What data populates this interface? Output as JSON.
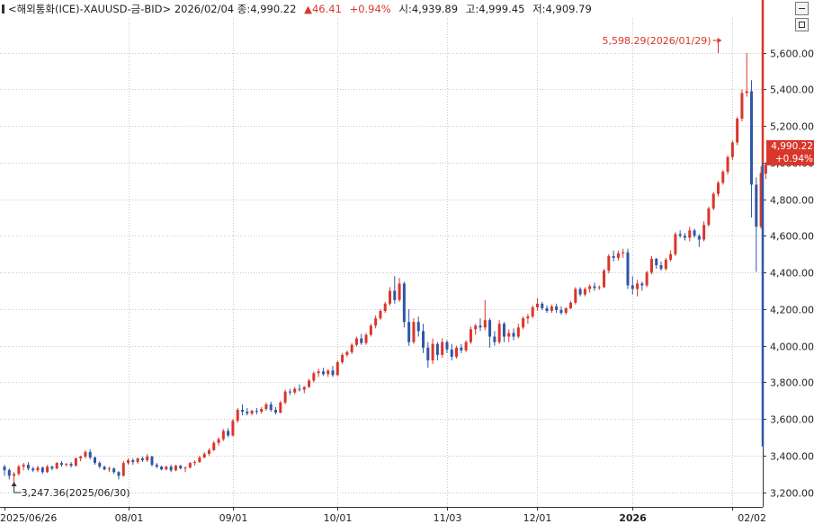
{
  "header": {
    "symbol": "<해외통화(ICE)-XAUUSD-금-BID>",
    "date": "2026/02/04",
    "close_label": "종:",
    "close": "4,990.22",
    "change_arrow": "▲",
    "change": "46.41",
    "change_pct": "+0.94%",
    "open_label": "시:",
    "open": "4,939.89",
    "high_label": "고:",
    "high": "4,999.45",
    "low_label": "저:",
    "low": "4,909.79"
  },
  "price_badge": {
    "price": "4,990.22",
    "change_pct": "+0.94%"
  },
  "colors": {
    "up": "#d9372b",
    "down": "#2f56a6",
    "grid": "#c8c8c8"
  },
  "chart_data": {
    "type": "candlestick",
    "y_ticks": [
      3200,
      3400,
      3600,
      3800,
      4000,
      4200,
      4400,
      4600,
      4800,
      5000,
      5200,
      5400,
      5600
    ],
    "y_tick_labels": [
      "3,200.00",
      "3,400.00",
      "3,600.00",
      "3,800.00",
      "4,000.00",
      "4,200.00",
      "4,400.00",
      "4,600.00",
      "4,800.00",
      "5,000.00",
      "5,200.00",
      "5,400.00",
      "5,600.00"
    ],
    "ylim": [
      3120,
      5790
    ],
    "x_tick_labels": [
      "2025/06/26",
      "08/01",
      "09/01",
      "10/01",
      "11/03",
      "12/01",
      "2026",
      "02/02"
    ],
    "x_tick_index": [
      0,
      26,
      48,
      70,
      93,
      112,
      132,
      153
    ],
    "x_tick_bold": [
      false,
      false,
      false,
      false,
      false,
      false,
      true,
      false
    ],
    "annotations": [
      {
        "text": "5,598.29(2026/01/29)",
        "index": 150,
        "value": 5598.29
      },
      {
        "text": "3,247.36(2025/06/30)",
        "index": 2,
        "value": 3247.36
      }
    ],
    "candles": [
      [
        3340,
        3350,
        3290,
        3320
      ],
      [
        3322,
        3330,
        3270,
        3290
      ],
      [
        3290,
        3310,
        3247,
        3300
      ],
      [
        3300,
        3350,
        3290,
        3340
      ],
      [
        3340,
        3360,
        3320,
        3350
      ],
      [
        3350,
        3365,
        3320,
        3330
      ],
      [
        3330,
        3340,
        3310,
        3320
      ],
      [
        3320,
        3345,
        3310,
        3335
      ],
      [
        3335,
        3340,
        3300,
        3310
      ],
      [
        3310,
        3350,
        3305,
        3340
      ],
      [
        3340,
        3345,
        3320,
        3330
      ],
      [
        3330,
        3365,
        3325,
        3360
      ],
      [
        3360,
        3370,
        3340,
        3350
      ],
      [
        3350,
        3360,
        3340,
        3355
      ],
      [
        3355,
        3365,
        3335,
        3345
      ],
      [
        3345,
        3390,
        3340,
        3385
      ],
      [
        3385,
        3400,
        3370,
        3395
      ],
      [
        3395,
        3430,
        3385,
        3420
      ],
      [
        3420,
        3435,
        3380,
        3390
      ],
      [
        3390,
        3395,
        3350,
        3360
      ],
      [
        3360,
        3370,
        3330,
        3340
      ],
      [
        3340,
        3345,
        3320,
        3325
      ],
      [
        3325,
        3340,
        3310,
        3330
      ],
      [
        3330,
        3335,
        3300,
        3310
      ],
      [
        3310,
        3315,
        3270,
        3290
      ],
      [
        3290,
        3370,
        3285,
        3360
      ],
      [
        3360,
        3385,
        3350,
        3375
      ],
      [
        3375,
        3385,
        3350,
        3365
      ],
      [
        3365,
        3390,
        3355,
        3385
      ],
      [
        3385,
        3395,
        3365,
        3375
      ],
      [
        3375,
        3410,
        3365,
        3395
      ],
      [
        3395,
        3400,
        3340,
        3350
      ],
      [
        3350,
        3360,
        3330,
        3340
      ],
      [
        3340,
        3345,
        3320,
        3325
      ],
      [
        3325,
        3345,
        3320,
        3340
      ],
      [
        3340,
        3350,
        3310,
        3320
      ],
      [
        3320,
        3350,
        3315,
        3345
      ],
      [
        3345,
        3350,
        3325,
        3330
      ],
      [
        3330,
        3340,
        3310,
        3335
      ],
      [
        3335,
        3365,
        3330,
        3360
      ],
      [
        3360,
        3375,
        3345,
        3365
      ],
      [
        3365,
        3400,
        3360,
        3390
      ],
      [
        3390,
        3420,
        3385,
        3410
      ],
      [
        3410,
        3440,
        3400,
        3430
      ],
      [
        3430,
        3480,
        3425,
        3470
      ],
      [
        3470,
        3500,
        3455,
        3490
      ],
      [
        3490,
        3545,
        3480,
        3535
      ],
      [
        3535,
        3550,
        3500,
        3510
      ],
      [
        3510,
        3600,
        3505,
        3590
      ],
      [
        3590,
        3660,
        3580,
        3650
      ],
      [
        3650,
        3680,
        3620,
        3640
      ],
      [
        3640,
        3660,
        3620,
        3630
      ],
      [
        3630,
        3650,
        3620,
        3645
      ],
      [
        3645,
        3660,
        3625,
        3640
      ],
      [
        3640,
        3665,
        3630,
        3655
      ],
      [
        3655,
        3690,
        3645,
        3680
      ],
      [
        3680,
        3695,
        3640,
        3650
      ],
      [
        3650,
        3665,
        3625,
        3635
      ],
      [
        3635,
        3700,
        3630,
        3690
      ],
      [
        3690,
        3760,
        3680,
        3750
      ],
      [
        3750,
        3765,
        3730,
        3745
      ],
      [
        3745,
        3775,
        3735,
        3765
      ],
      [
        3765,
        3790,
        3750,
        3760
      ],
      [
        3760,
        3780,
        3740,
        3775
      ],
      [
        3775,
        3820,
        3770,
        3810
      ],
      [
        3810,
        3860,
        3800,
        3850
      ],
      [
        3850,
        3875,
        3830,
        3860
      ],
      [
        3860,
        3880,
        3835,
        3845
      ],
      [
        3845,
        3870,
        3830,
        3865
      ],
      [
        3865,
        3890,
        3830,
        3840
      ],
      [
        3840,
        3920,
        3835,
        3910
      ],
      [
        3910,
        3960,
        3900,
        3950
      ],
      [
        3950,
        3975,
        3940,
        3965
      ],
      [
        3965,
        4015,
        3955,
        4005
      ],
      [
        4005,
        4050,
        3995,
        4040
      ],
      [
        4040,
        4065,
        4005,
        4015
      ],
      [
        4015,
        4070,
        4005,
        4060
      ],
      [
        4060,
        4120,
        4050,
        4110
      ],
      [
        4110,
        4165,
        4095,
        4150
      ],
      [
        4150,
        4200,
        4140,
        4190
      ],
      [
        4190,
        4240,
        4180,
        4230
      ],
      [
        4230,
        4320,
        4220,
        4300
      ],
      [
        4300,
        4380,
        4230,
        4250
      ],
      [
        4250,
        4370,
        4240,
        4340
      ],
      [
        4340,
        4350,
        4100,
        4130
      ],
      [
        4130,
        4200,
        4000,
        4020
      ],
      [
        4020,
        4150,
        4010,
        4130
      ],
      [
        4130,
        4160,
        4050,
        4080
      ],
      [
        4080,
        4120,
        3960,
        3990
      ],
      [
        3990,
        4020,
        3880,
        3920
      ],
      [
        3920,
        4040,
        3900,
        4010
      ],
      [
        4010,
        4020,
        3920,
        3950
      ],
      [
        3950,
        4040,
        3935,
        4020
      ],
      [
        4020,
        4030,
        3960,
        3980
      ],
      [
        3980,
        4010,
        3920,
        3940
      ],
      [
        3940,
        4000,
        3930,
        3990
      ],
      [
        3990,
        4010,
        3960,
        3975
      ],
      [
        3975,
        4030,
        3965,
        4020
      ],
      [
        4020,
        4105,
        4010,
        4090
      ],
      [
        4090,
        4120,
        4060,
        4110
      ],
      [
        4110,
        4150,
        4080,
        4100
      ],
      [
        4100,
        4250,
        4085,
        4140
      ],
      [
        4140,
        4150,
        3990,
        4050
      ],
      [
        4050,
        4080,
        4000,
        4020
      ],
      [
        4020,
        4140,
        4010,
        4120
      ],
      [
        4120,
        4130,
        4020,
        4050
      ],
      [
        4050,
        4090,
        4020,
        4070
      ],
      [
        4070,
        4095,
        4030,
        4050
      ],
      [
        4050,
        4120,
        4040,
        4100
      ],
      [
        4100,
        4160,
        4090,
        4150
      ],
      [
        4150,
        4175,
        4120,
        4160
      ],
      [
        4160,
        4220,
        4150,
        4210
      ],
      [
        4210,
        4260,
        4190,
        4230
      ],
      [
        4230,
        4240,
        4195,
        4205
      ],
      [
        4205,
        4220,
        4180,
        4190
      ],
      [
        4190,
        4225,
        4180,
        4215
      ],
      [
        4215,
        4230,
        4180,
        4195
      ],
      [
        4195,
        4215,
        4170,
        4180
      ],
      [
        4180,
        4210,
        4170,
        4205
      ],
      [
        4205,
        4245,
        4200,
        4235
      ],
      [
        4235,
        4320,
        4225,
        4310
      ],
      [
        4310,
        4320,
        4270,
        4280
      ],
      [
        4280,
        4320,
        4270,
        4310
      ],
      [
        4310,
        4335,
        4290,
        4325
      ],
      [
        4325,
        4345,
        4300,
        4315
      ],
      [
        4315,
        4330,
        4305,
        4320
      ],
      [
        4320,
        4420,
        4315,
        4410
      ],
      [
        4410,
        4500,
        4395,
        4490
      ],
      [
        4490,
        4520,
        4460,
        4480
      ],
      [
        4480,
        4520,
        4465,
        4505
      ],
      [
        4505,
        4530,
        4480,
        4510
      ],
      [
        4510,
        4530,
        4310,
        4330
      ],
      [
        4330,
        4380,
        4280,
        4310
      ],
      [
        4310,
        4360,
        4270,
        4340
      ],
      [
        4340,
        4350,
        4300,
        4330
      ],
      [
        4330,
        4410,
        4320,
        4400
      ],
      [
        4400,
        4490,
        4390,
        4475
      ],
      [
        4475,
        4480,
        4420,
        4440
      ],
      [
        4440,
        4460,
        4410,
        4420
      ],
      [
        4420,
        4480,
        4410,
        4470
      ],
      [
        4470,
        4520,
        4460,
        4500
      ],
      [
        4500,
        4620,
        4490,
        4610
      ],
      [
        4610,
        4630,
        4590,
        4600
      ],
      [
        4600,
        4615,
        4575,
        4590
      ],
      [
        4590,
        4650,
        4570,
        4630
      ],
      [
        4630,
        4640,
        4590,
        4600
      ],
      [
        4600,
        4610,
        4540,
        4580
      ],
      [
        4580,
        4680,
        4570,
        4660
      ],
      [
        4660,
        4760,
        4650,
        4750
      ],
      [
        4750,
        4840,
        4740,
        4830
      ],
      [
        4830,
        4900,
        4815,
        4890
      ],
      [
        4890,
        4960,
        4880,
        4950
      ],
      [
        4950,
        5040,
        4935,
        5030
      ],
      [
        5030,
        5120,
        5015,
        5110
      ],
      [
        5110,
        5250,
        5095,
        5240
      ],
      [
        5240,
        5400,
        5225,
        5380
      ],
      [
        5380,
        5598.29,
        5360,
        5390
      ],
      [
        5390,
        5450,
        4700,
        4880
      ],
      [
        4880,
        4920,
        4403,
        4650
      ],
      [
        4650,
        4980,
        4640,
        4944
      ],
      [
        4939.89,
        4999.45,
        4909.79,
        4990.22
      ]
    ]
  }
}
